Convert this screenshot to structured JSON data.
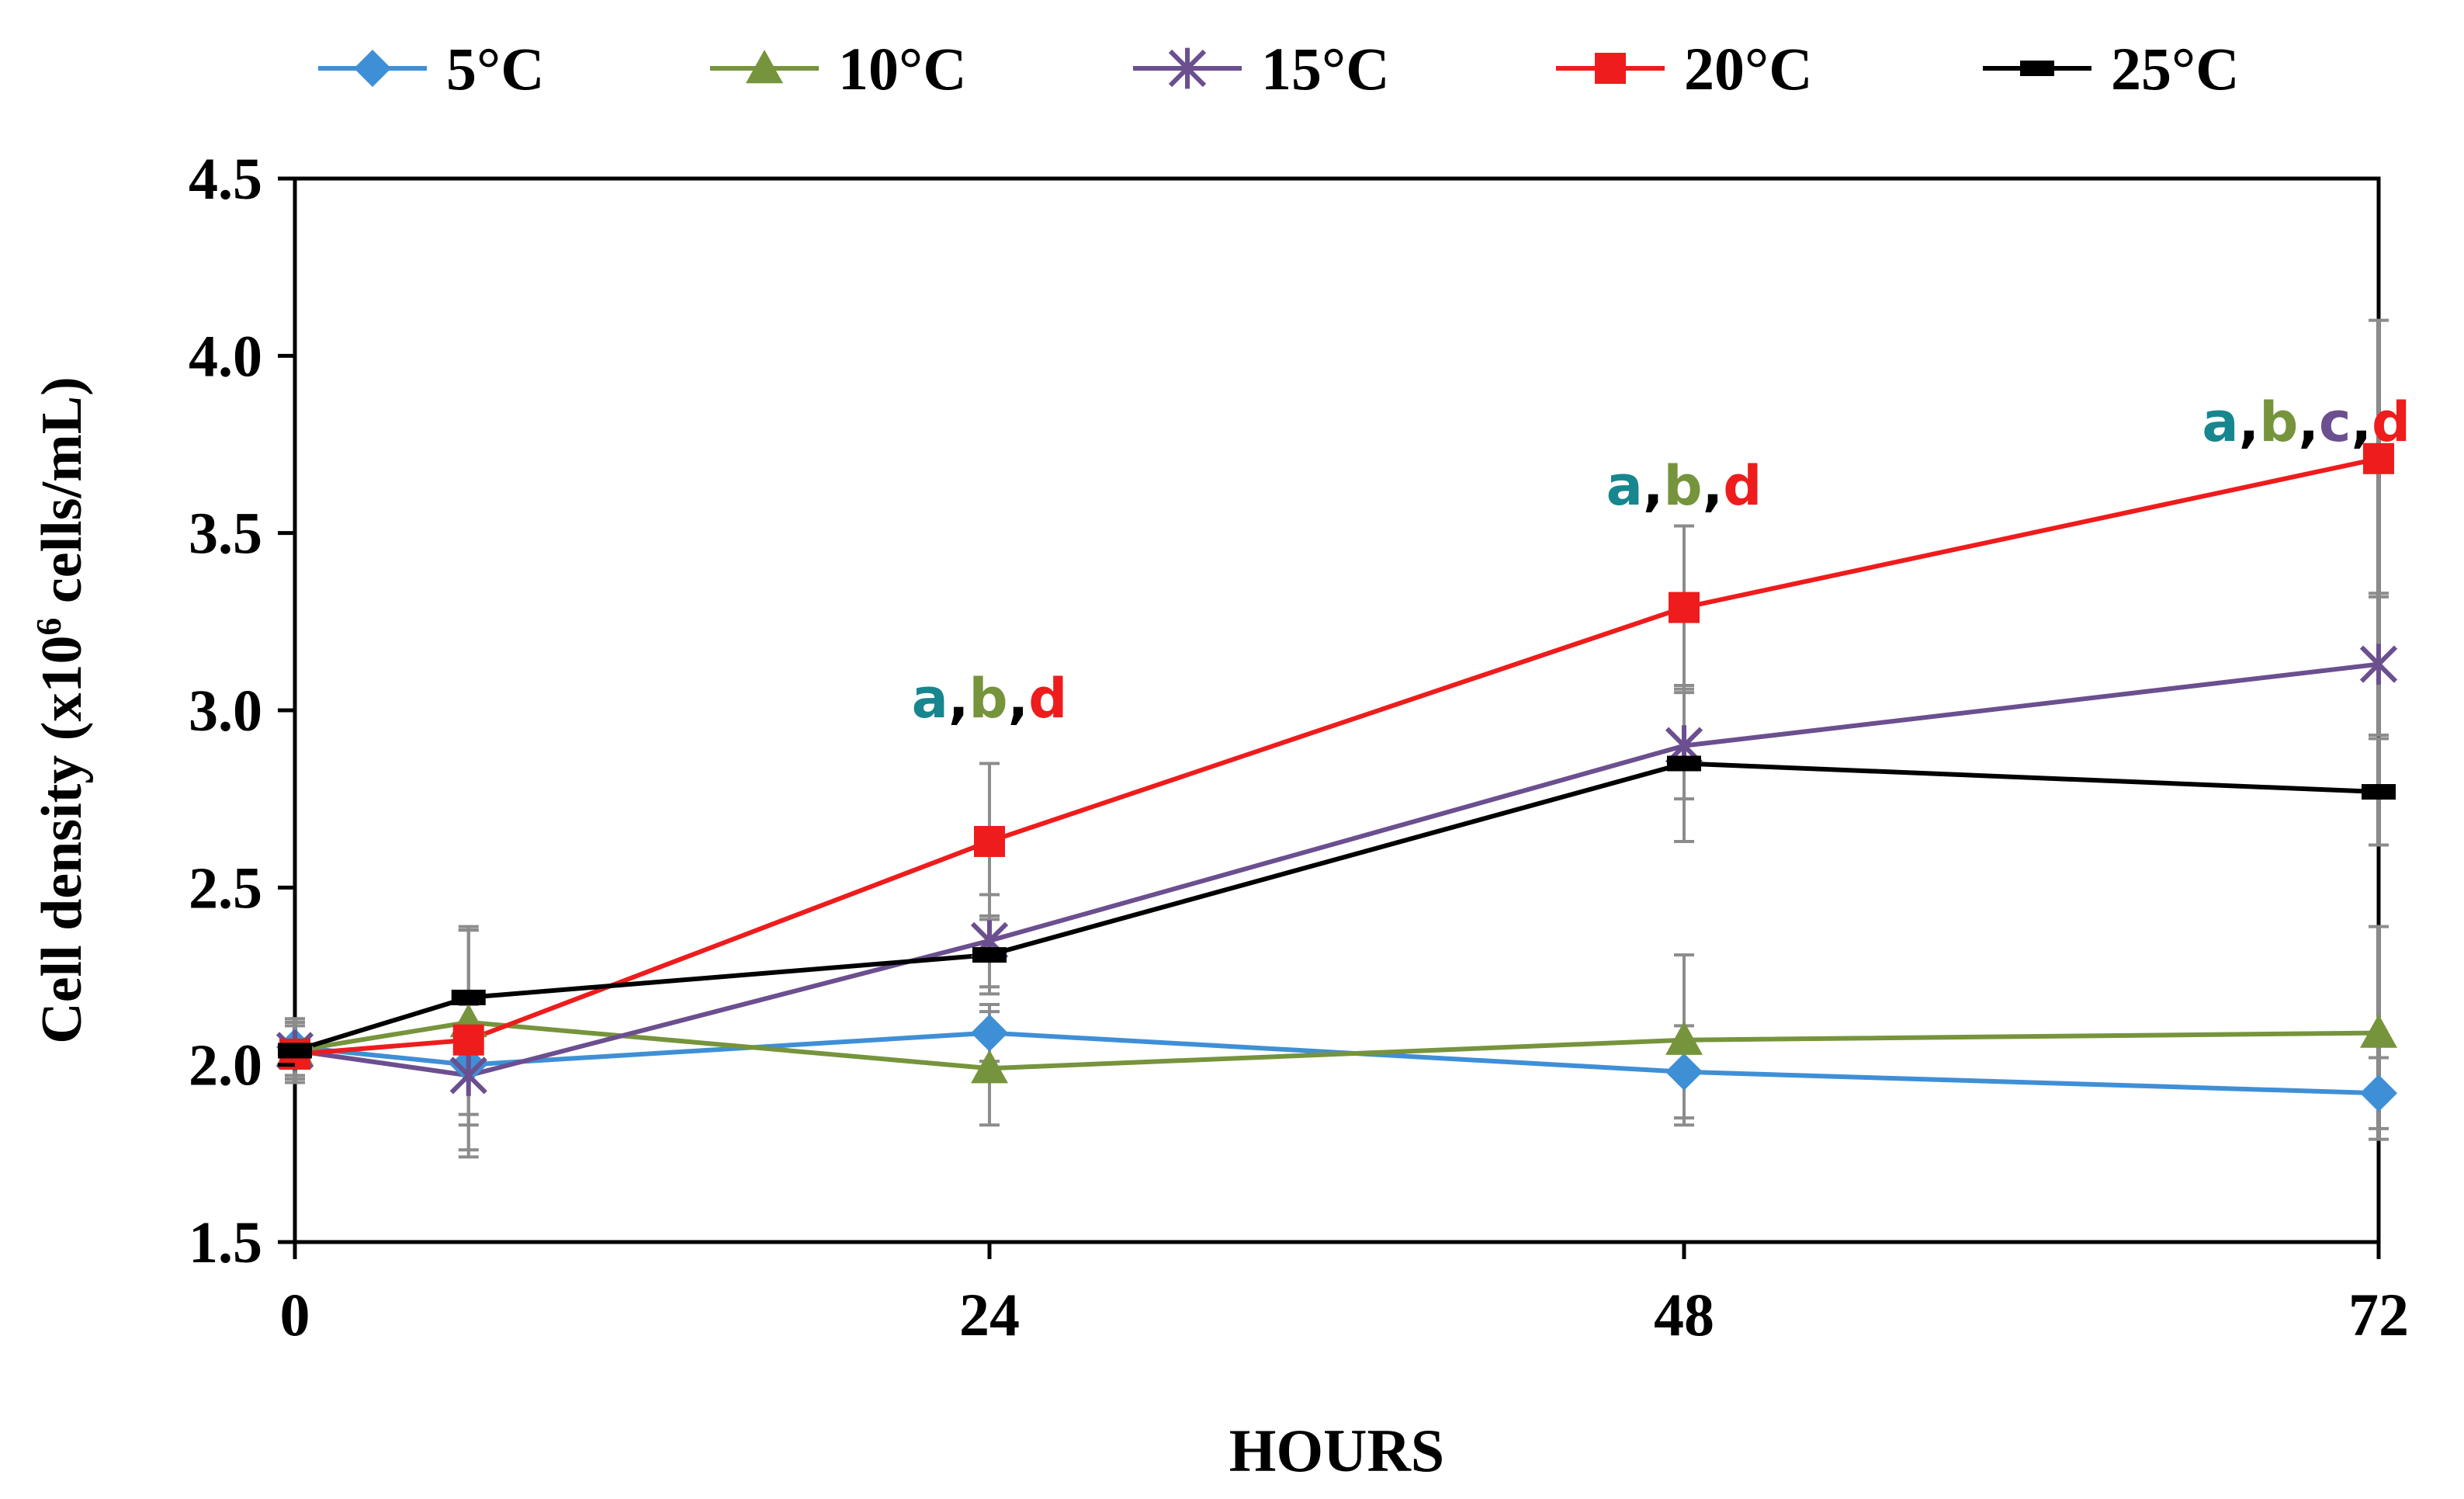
{
  "chart_data": {
    "type": "line",
    "xlabel": "HOURS",
    "ylabel": "Cell density (x10",
    "ylabel_sup": "6",
    "ylabel_tail": " cells/mL)",
    "xlim": [
      0,
      72
    ],
    "ylim": [
      1.5,
      4.5
    ],
    "xticks": [
      "0",
      "24",
      "48",
      "72"
    ],
    "xtick_values": [
      0,
      24,
      48,
      72
    ],
    "yticks": [
      "1.5",
      "2.0",
      "2.5",
      "3.0",
      "3.5",
      "4.0",
      "4.5"
    ],
    "ytick_values": [
      1.5,
      2.0,
      2.5,
      3.0,
      3.5,
      4.0,
      4.5
    ],
    "grid": false,
    "legend_position": "top",
    "x": [
      0,
      6,
      24,
      48,
      72
    ],
    "series": [
      {
        "name": "5°C",
        "color": "#3f8fd6",
        "marker": "diamond",
        "values": [
          2.05,
          2.0,
          2.09,
          1.98,
          1.92
        ],
        "errors": [
          0.08,
          0.17,
          0.08,
          0.13,
          0.1
        ]
      },
      {
        "name": "10°C",
        "color": "#76943c",
        "marker": "triangle",
        "values": [
          2.04,
          2.12,
          1.99,
          2.07,
          2.09
        ],
        "errors": [
          0.08,
          0.26,
          0.16,
          0.24,
          0.3
        ]
      },
      {
        "name": "15°C",
        "color": "#6b4f8f",
        "marker": "star",
        "values": [
          2.04,
          1.97,
          2.35,
          2.9,
          3.13
        ],
        "errors": [
          0.08,
          0.23,
          0.13,
          0.15,
          0.2
        ]
      },
      {
        "name": "20°C",
        "color": "#ee1c1c",
        "marker": "square",
        "values": [
          2.03,
          2.07,
          2.63,
          3.29,
          3.71
        ],
        "errors": [
          0.08,
          0.31,
          0.22,
          0.23,
          0.39
        ]
      },
      {
        "name": "25°C",
        "color": "#000000",
        "marker": "dash",
        "values": [
          2.04,
          2.19,
          2.31,
          2.85,
          2.77
        ],
        "errors": [
          0.08,
          0.2,
          0.11,
          0.22,
          0.15
        ]
      }
    ],
    "annotations": [
      {
        "x": 24,
        "y_anchor": 2.98,
        "parts": [
          {
            "text": "a",
            "color": "#17868f"
          },
          {
            "text": ",",
            "color": "#000000"
          },
          {
            "text": "b",
            "color": "#76943c"
          },
          {
            "text": ",",
            "color": "#000000"
          },
          {
            "text": "d",
            "color": "#ee1c1c"
          }
        ]
      },
      {
        "x": 48,
        "y_anchor": 3.58,
        "parts": [
          {
            "text": "a",
            "color": "#17868f"
          },
          {
            "text": ",",
            "color": "#000000"
          },
          {
            "text": "b",
            "color": "#76943c"
          },
          {
            "text": ",",
            "color": "#000000"
          },
          {
            "text": "d",
            "color": "#ee1c1c"
          }
        ]
      },
      {
        "x": 69.5,
        "y_anchor": 3.76,
        "parts": [
          {
            "text": "a",
            "color": "#17868f"
          },
          {
            "text": ",",
            "color": "#000000"
          },
          {
            "text": "b",
            "color": "#76943c"
          },
          {
            "text": ",",
            "color": "#000000"
          },
          {
            "text": "c",
            "color": "#6b4f8f"
          },
          {
            "text": ",",
            "color": "#000000"
          },
          {
            "text": "d",
            "color": "#ee1c1c"
          }
        ]
      }
    ]
  }
}
